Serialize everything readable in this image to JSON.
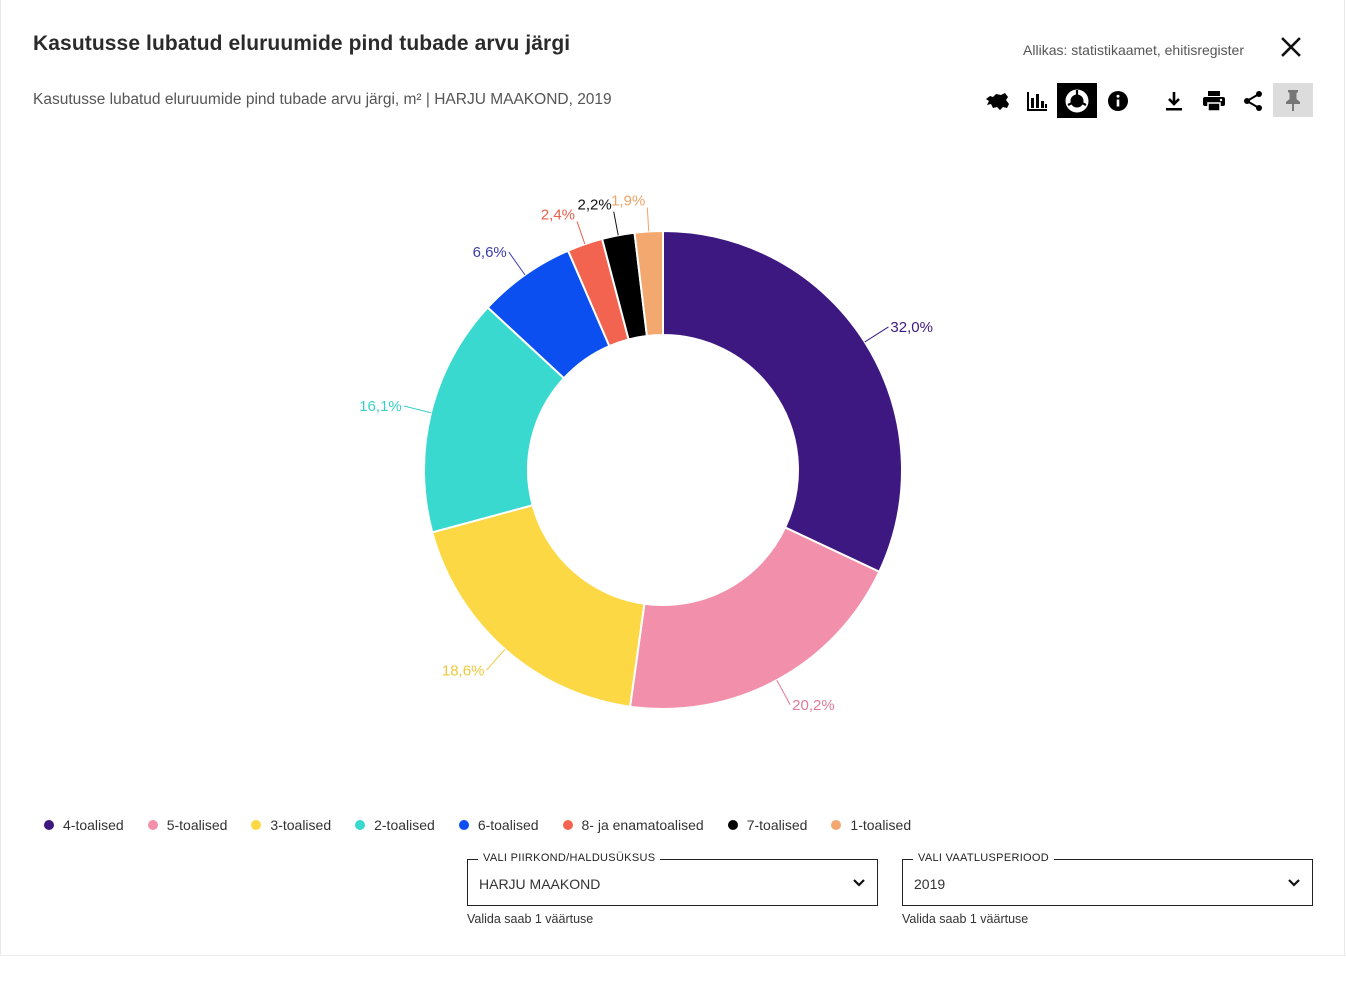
{
  "header": {
    "title": "Kasutusse lubatud eluruumide pind tubade arvu järgi",
    "source": "Allikas: statistikaamet, ehitisregister",
    "subtitle": "Kasutusse lubatud eluruumide pind tubade arvu järgi, m² | HARJU MAAKOND, 2019"
  },
  "toolbar": {
    "buttons": [
      {
        "icon": "map-icon",
        "active": false
      },
      {
        "icon": "bar-chart-icon",
        "active": false
      },
      {
        "icon": "donut-chart-icon",
        "active": true
      },
      {
        "icon": "info-icon",
        "active": false
      },
      {
        "icon": "download-icon",
        "active": false
      },
      {
        "icon": "print-icon",
        "active": false
      },
      {
        "icon": "share-icon",
        "active": false
      },
      {
        "icon": "pin-icon",
        "active": true
      }
    ]
  },
  "chart_data": {
    "type": "pie",
    "variant": "donut",
    "categories": [
      "4-toalised",
      "5-toalised",
      "3-toalised",
      "2-toalised",
      "6-toalised",
      "8- ja enamatoalised",
      "7-toalised",
      "1-toalised"
    ],
    "values": [
      32.0,
      20.2,
      18.6,
      16.1,
      6.6,
      2.4,
      2.2,
      1.9
    ],
    "labels": [
      "32,0%",
      "20,2%",
      "18,6%",
      "16,1%",
      "6,6%",
      "2,4%",
      "2,2%",
      "1,9%"
    ],
    "colors": [
      "#3d1880",
      "#f28fab",
      "#fdd845",
      "#3ad9cf",
      "#0c4ff0",
      "#f26450",
      "#000000",
      "#f2a86e"
    ],
    "label_colors": [
      "#3d1880",
      "#e07a98",
      "#f0c93a",
      "#3ad0c8",
      "#3b3bb0",
      "#e8604c",
      "#111111",
      "#eea468"
    ],
    "legend_position": "bottom-left"
  },
  "filters": {
    "region": {
      "label": "VALI PIIRKOND/HALDUSÜKSUS",
      "value": "HARJU MAAKOND",
      "helper": "Valida saab 1 väärtuse"
    },
    "period": {
      "label": "VALI VAATLUSPERIOOD",
      "value": "2019",
      "helper": "Valida saab 1 väärtuse"
    }
  }
}
